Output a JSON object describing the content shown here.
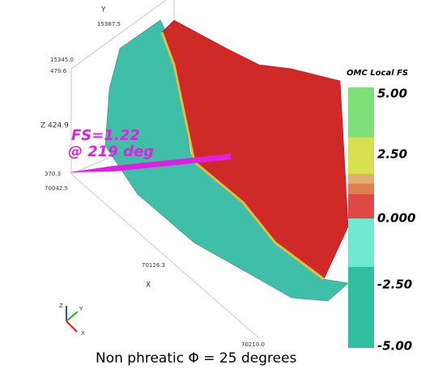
{
  "axes": {
    "y_label": "Y",
    "y_max": "15387.5",
    "y_min": "15345.0",
    "z_max": "479.6",
    "z_mid": "Z 424.9",
    "z_min": "370.3",
    "x_min": "70042.5",
    "x_mid": "70126.3",
    "x_label": "X",
    "x_max": "70210.0"
  },
  "annotation": {
    "line1": "FS=1.22",
    "line2": "@ 219 deg"
  },
  "colorbar": {
    "title": "OMC Local FS",
    "labels": [
      "5.00",
      "2.50",
      "0.000",
      "-2.50",
      "-5.00"
    ]
  },
  "triad": {
    "y": "Y",
    "z": "Z",
    "x": "X"
  },
  "caption": "Non phreatic Φ = 25 degrees"
}
